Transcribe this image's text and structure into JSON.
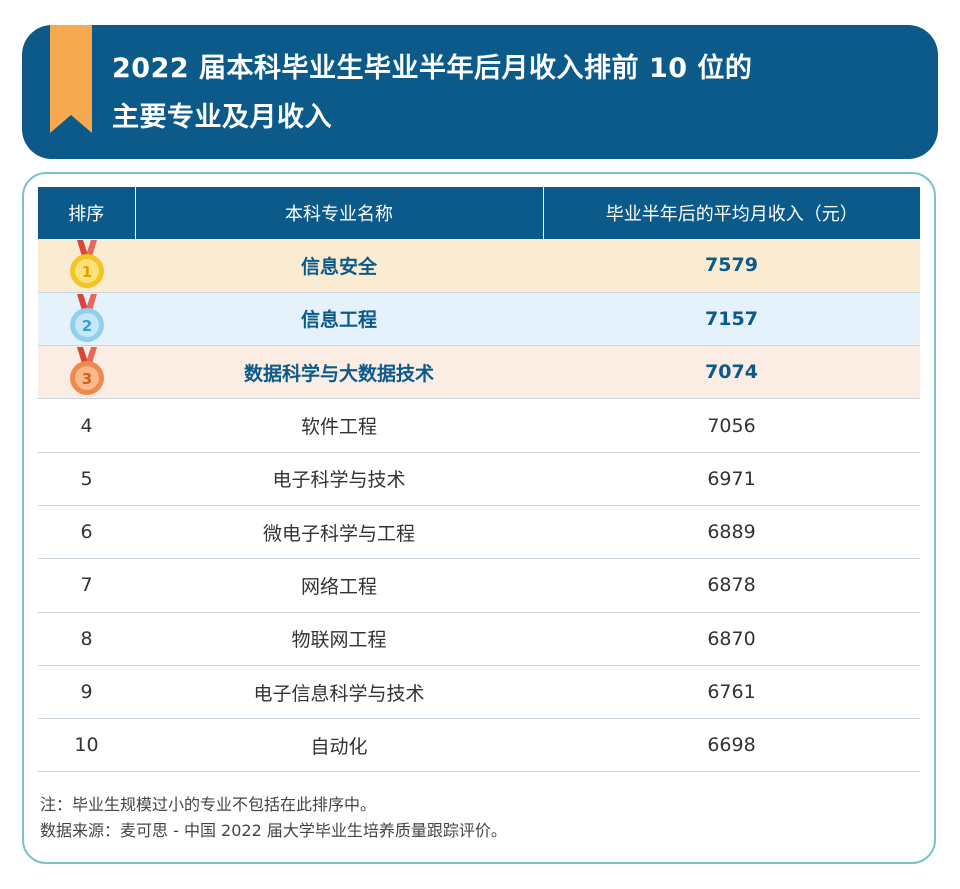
{
  "header": {
    "title_line1": "2022 届本科毕业生毕业半年后月收入排前 10 位的",
    "title_line2": "主要专业及月收入"
  },
  "table": {
    "columns": [
      "排序",
      "本科专业名称",
      "毕业半年后的平均月收入（元）"
    ],
    "rows": [
      {
        "rank": "1",
        "major": "信息安全",
        "income": "7579",
        "medal": "gold-medal-icon"
      },
      {
        "rank": "2",
        "major": "信息工程",
        "income": "7157",
        "medal": "silver-medal-icon"
      },
      {
        "rank": "3",
        "major": "数据科学与大数据技术",
        "income": "7074",
        "medal": "bronze-medal-icon"
      },
      {
        "rank": "4",
        "major": "软件工程",
        "income": "7056"
      },
      {
        "rank": "5",
        "major": "电子科学与技术",
        "income": "6971"
      },
      {
        "rank": "6",
        "major": "微电子科学与工程",
        "income": "6889"
      },
      {
        "rank": "7",
        "major": "网络工程",
        "income": "6878"
      },
      {
        "rank": "8",
        "major": "物联网工程",
        "income": "6870"
      },
      {
        "rank": "9",
        "major": "电子信息科学与技术",
        "income": "6761"
      },
      {
        "rank": "10",
        "major": "自动化",
        "income": "6698"
      }
    ]
  },
  "notes": {
    "note": "注：毕业生规模过小的专业不包括在此排序中。",
    "source": "数据来源：麦可思 - 中国 2022 届大学毕业生培养质量跟踪评价。"
  },
  "colors": {
    "primary": "#0b5a8a",
    "gold_row": "#fbecd1",
    "silver_row": "#e6f2fb",
    "bronze_row": "#fbede4",
    "ribbon": "#f7a94f",
    "card_border": "#7cc3c7"
  }
}
